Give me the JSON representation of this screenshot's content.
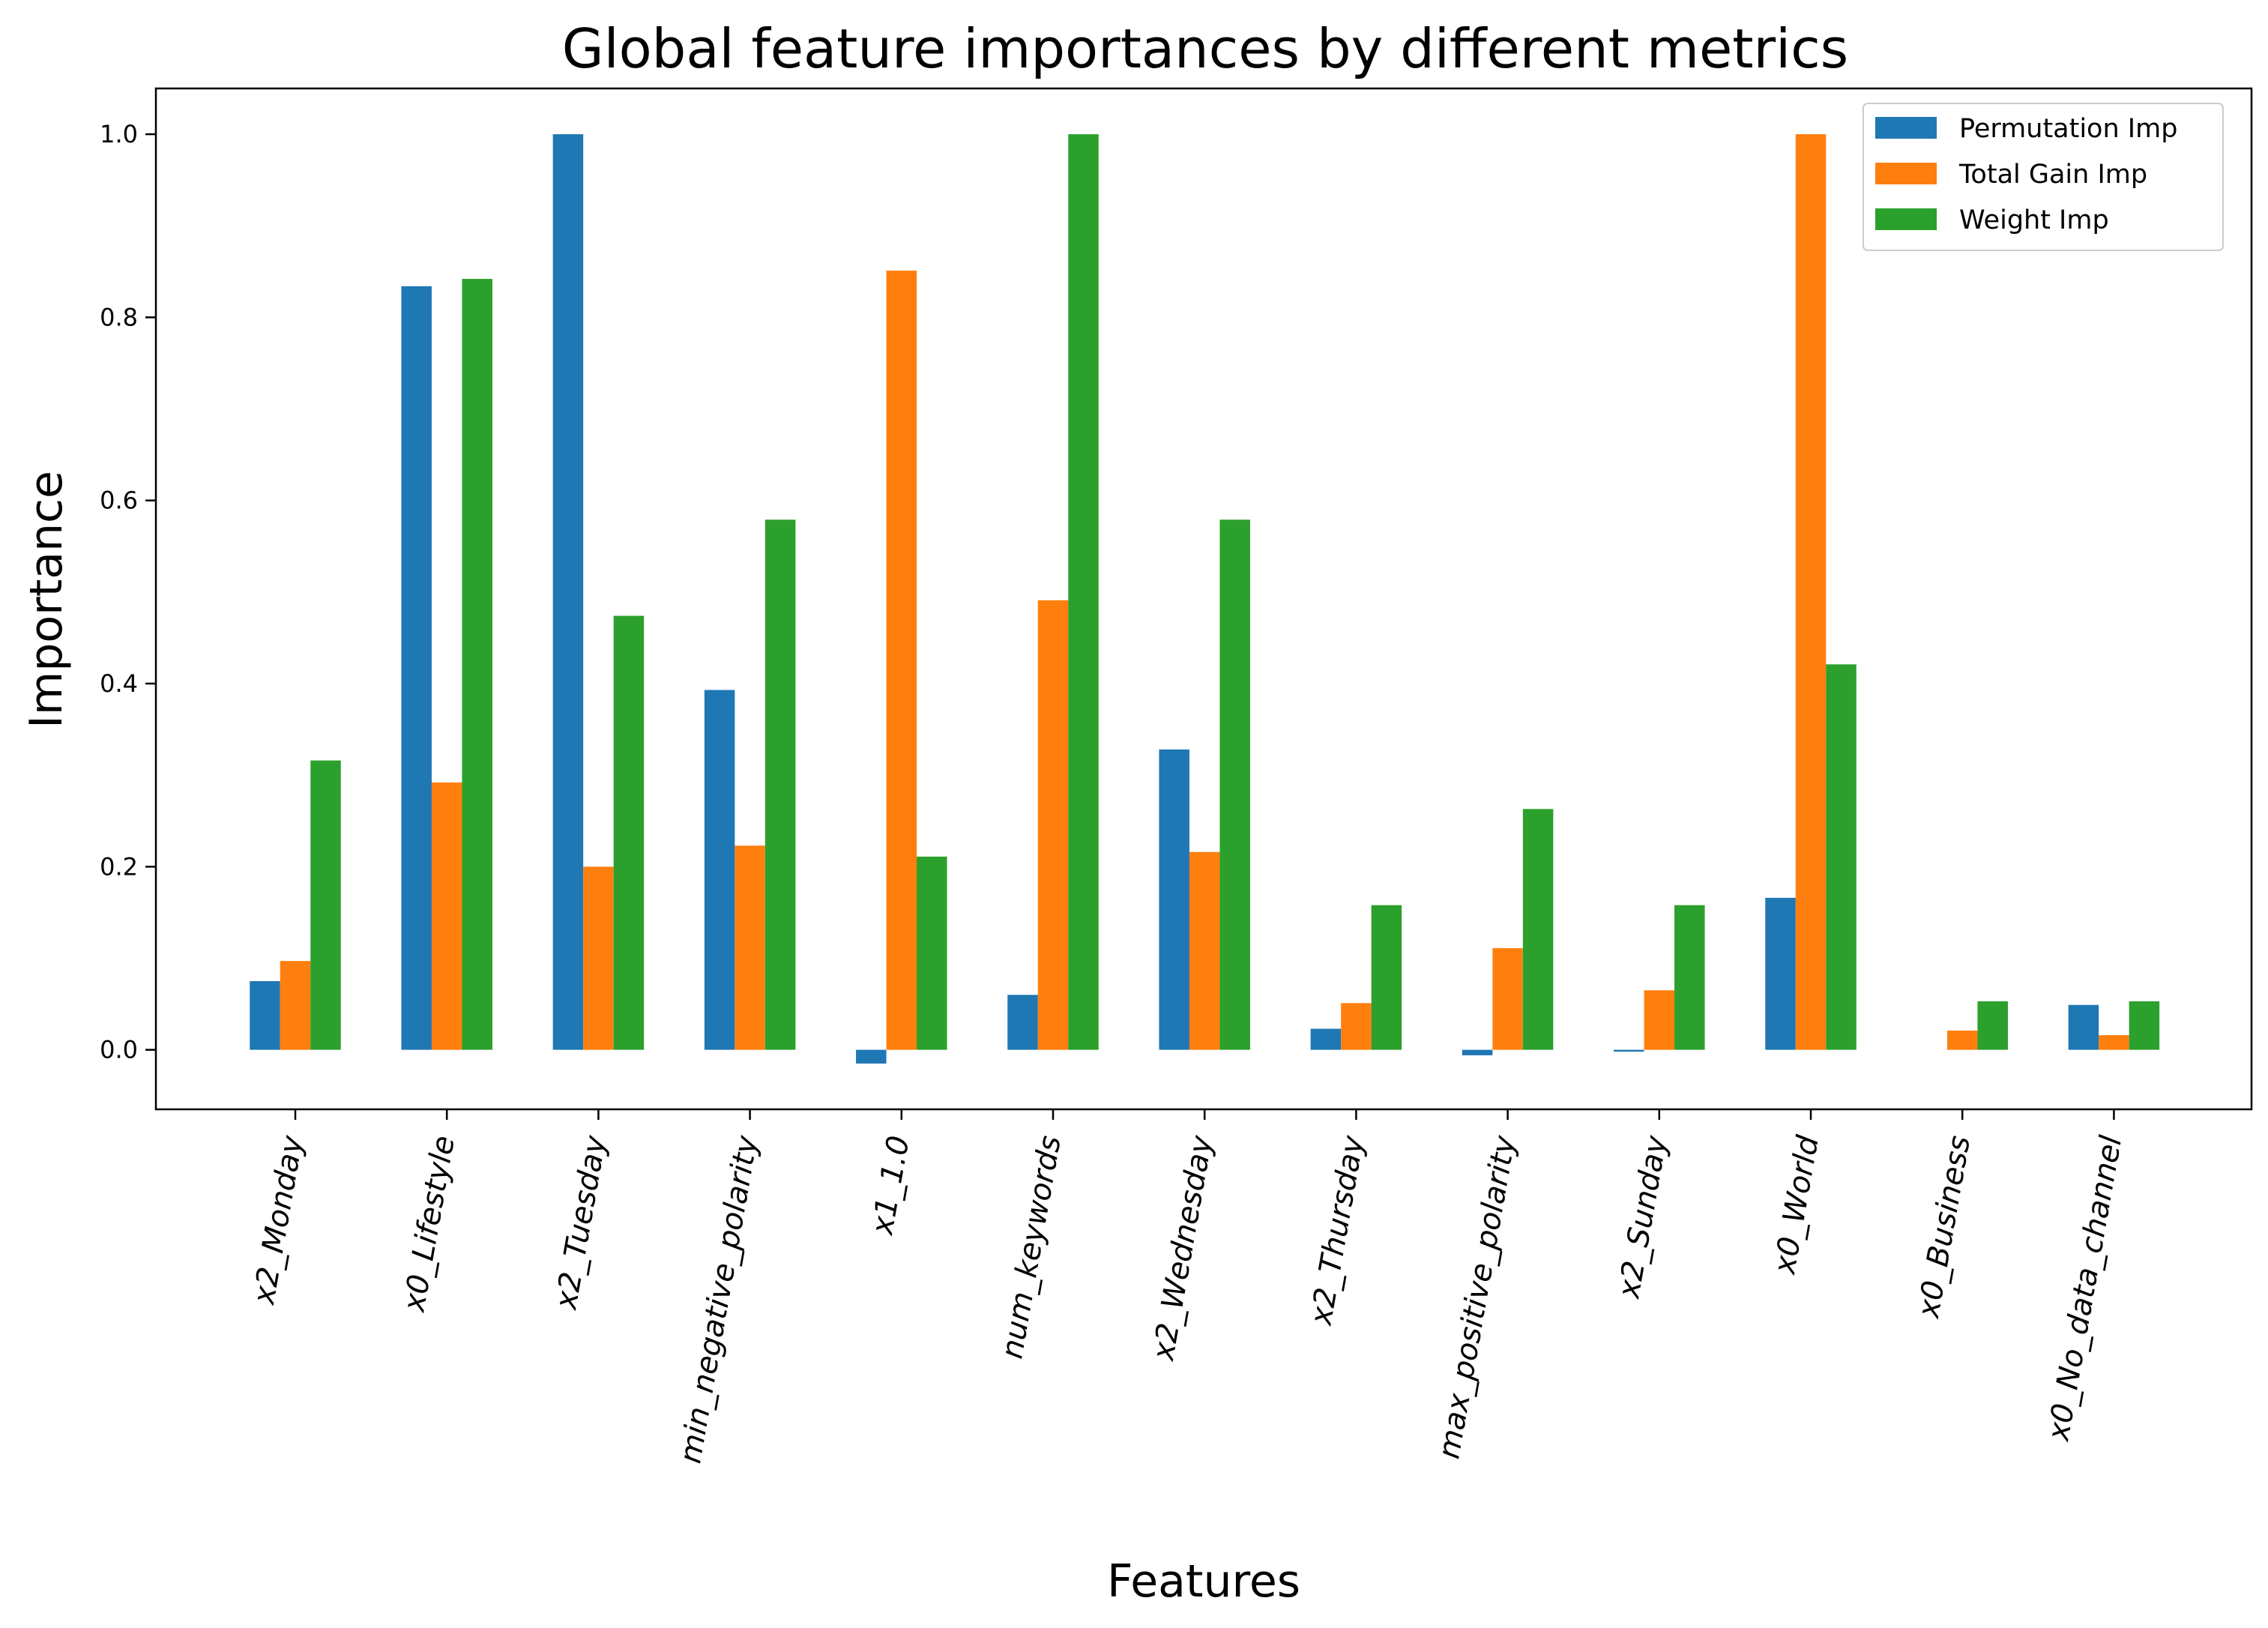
{
  "chart_data": {
    "type": "bar",
    "title": "Global feature importances by different metrics",
    "xlabel": "Features",
    "ylabel": "Importance",
    "ylim": [
      -0.065,
      1.05
    ],
    "yticks": [
      "0.0",
      "0.2",
      "0.4",
      "0.6",
      "0.8",
      "1.0"
    ],
    "ytick_values": [
      0.0,
      0.2,
      0.4,
      0.6,
      0.8,
      1.0
    ],
    "grid": false,
    "legend_position": "top-right",
    "categories": [
      "x2_Monday",
      "x0_Lifestyle",
      "x2_Tuesday",
      "min_negative_polarity",
      "x1_1.0",
      "num_keywords",
      "x2_Wednesday",
      "x2_Thursday",
      "max_positive_polarity",
      "x2_Sunday",
      "x0_World",
      "x0_Business",
      "x0_No_data_channel"
    ],
    "series": [
      {
        "name": "Permutation Imp",
        "color": "#1f77b4",
        "values": [
          0.075,
          0.834,
          1.0,
          0.393,
          -0.015,
          0.06,
          0.328,
          0.023,
          -0.006,
          -0.002,
          0.166,
          0.0,
          0.049
        ]
      },
      {
        "name": "Total Gain Imp",
        "color": "#ff7f0e",
        "values": [
          0.097,
          0.292,
          0.2,
          0.223,
          0.851,
          0.491,
          0.216,
          0.051,
          0.111,
          0.065,
          1.0,
          0.021,
          0.016
        ]
      },
      {
        "name": "Weight Imp",
        "color": "#2ca02c",
        "values": [
          0.316,
          0.842,
          0.474,
          0.579,
          0.211,
          1.0,
          0.579,
          0.158,
          0.263,
          0.158,
          0.421,
          0.053,
          0.053
        ]
      }
    ]
  }
}
